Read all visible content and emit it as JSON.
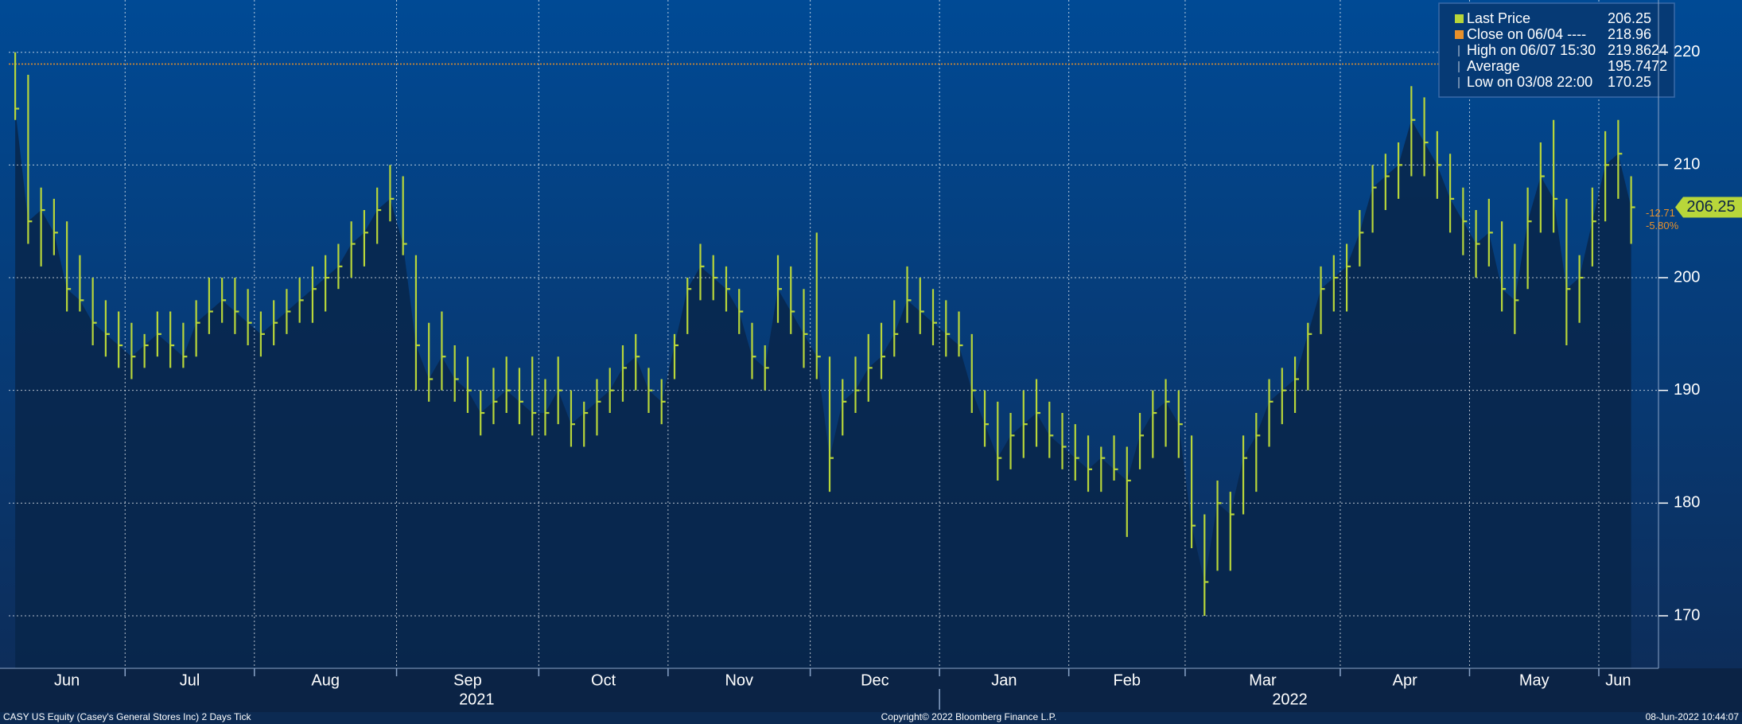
{
  "chart_data": {
    "type": "ohlc",
    "color": "#b8d63a",
    "ref_color": "#e8902a",
    "grid": true,
    "ylim": [
      165.34,
      224.64
    ],
    "yticks": [
      170,
      180,
      190,
      200,
      210,
      220
    ],
    "xlim": [
      0,
      127
    ],
    "xticks": [
      {
        "value": 0,
        "label": "Jun"
      },
      {
        "value": 9,
        "label": "Jul"
      },
      {
        "value": 19,
        "label": "Aug"
      },
      {
        "value": 30,
        "label": "Sep"
      },
      {
        "value": 41,
        "label": "Oct"
      },
      {
        "value": 51,
        "label": "Nov"
      },
      {
        "value": 62,
        "label": "Dec"
      },
      {
        "value": 72,
        "label": "Jan"
      },
      {
        "value": 82,
        "label": "Feb"
      },
      {
        "value": 91,
        "label": "Mar"
      },
      {
        "value": 103,
        "label": "Apr"
      },
      {
        "value": 113,
        "label": "May"
      },
      {
        "value": 123,
        "label": "Jun"
      }
    ],
    "years": [
      {
        "value": 36.2,
        "label": "2021"
      },
      {
        "value": 99.1,
        "label": "2022"
      }
    ],
    "year_divider": 72,
    "high": [
      220,
      218,
      208,
      207,
      205,
      202,
      200,
      198,
      197,
      196,
      195,
      197,
      197,
      196,
      198,
      200,
      200,
      200,
      199,
      197,
      198,
      199,
      200,
      201,
      202,
      203,
      205,
      206,
      208,
      210,
      209,
      202,
      196,
      197,
      194,
      193,
      190,
      192,
      193,
      192,
      193,
      191,
      193,
      190,
      189,
      191,
      192,
      194,
      195,
      192,
      191,
      195,
      200,
      203,
      202,
      201,
      199,
      196,
      194,
      202,
      201,
      199,
      204,
      193,
      191,
      193,
      195,
      196,
      198,
      201,
      200,
      199,
      198,
      197,
      195,
      190,
      189,
      188,
      190,
      191,
      189,
      188,
      187,
      186,
      185,
      186,
      185,
      188,
      190,
      191,
      190,
      186,
      179,
      182,
      181,
      186,
      188,
      191,
      192,
      193,
      196,
      201,
      202,
      203,
      206,
      210,
      211,
      212,
      217,
      216,
      213,
      211,
      208,
      206,
      207,
      205,
      203,
      208,
      212,
      214,
      207,
      202,
      208,
      213,
      214,
      209
    ],
    "low": [
      214,
      203,
      201,
      202,
      197,
      197,
      194,
      193,
      192,
      191,
      192,
      193,
      192,
      192,
      193,
      195,
      196,
      195,
      194,
      193,
      194,
      195,
      196,
      196,
      197,
      199,
      200,
      201,
      203,
      205,
      202,
      190,
      189,
      190,
      189,
      188,
      186,
      187,
      188,
      187,
      186,
      186,
      187,
      185,
      185,
      186,
      188,
      189,
      190,
      188,
      187,
      191,
      195,
      198,
      198,
      197,
      195,
      191,
      190,
      196,
      195,
      192,
      191,
      181,
      186,
      188,
      189,
      191,
      193,
      196,
      195,
      194,
      193,
      193,
      188,
      185,
      182,
      183,
      184,
      185,
      184,
      183,
      182,
      181,
      181,
      182,
      177,
      183,
      184,
      185,
      184,
      176,
      170,
      174,
      174,
      179,
      181,
      185,
      187,
      188,
      190,
      195,
      197,
      197,
      201,
      204,
      206,
      207,
      209,
      209,
      207,
      204,
      202,
      200,
      201,
      197,
      195,
      199,
      204,
      204,
      194,
      196,
      201,
      205,
      207,
      203
    ],
    "close": [
      215,
      205,
      206,
      204,
      199,
      198,
      196,
      195,
      194,
      193,
      194,
      195,
      194,
      193,
      196,
      197,
      198,
      197,
      196,
      195,
      196,
      197,
      198,
      199,
      200,
      201,
      203,
      204,
      206,
      207,
      203,
      194,
      191,
      193,
      191,
      190,
      188,
      189,
      190,
      189,
      188,
      188,
      190,
      187,
      188,
      189,
      190,
      192,
      193,
      190,
      189,
      194,
      199,
      201,
      200,
      199,
      197,
      193,
      192,
      199,
      197,
      195,
      193,
      184,
      189,
      190,
      192,
      193,
      195,
      198,
      197,
      196,
      195,
      194,
      190,
      187,
      184,
      186,
      187,
      188,
      186,
      185,
      184,
      183,
      184,
      183,
      182,
      186,
      188,
      189,
      187,
      178,
      173,
      180,
      179,
      184,
      186,
      189,
      190,
      191,
      195,
      199,
      200,
      201,
      204,
      208,
      209,
      210,
      214,
      212,
      210,
      207,
      205,
      203,
      204,
      199,
      198,
      205,
      209,
      207,
      199,
      200,
      205,
      210,
      211,
      206.25
    ],
    "legend": [
      {
        "label": "Last Price",
        "value": 206.25
      },
      {
        "label": "Close on 06/04 ----",
        "value": 218.96
      },
      {
        "label": "High on 06/07 15:30",
        "value": 219.8624
      },
      {
        "label": "Average",
        "value": 195.7472
      },
      {
        "label": "Low on 03/08 22:00",
        "value": 170.25
      }
    ],
    "last_price": 206.25,
    "change_labels": [
      "-12.71",
      "-5.80%"
    ],
    "footer": {
      "left": "CASY US Equity (Casey's General Stores Inc) 2 Days  Tick",
      "center": "Copyright© 2022 Bloomberg Finance L.P.",
      "right": "08-Jun-2022 10:44:07"
    }
  }
}
